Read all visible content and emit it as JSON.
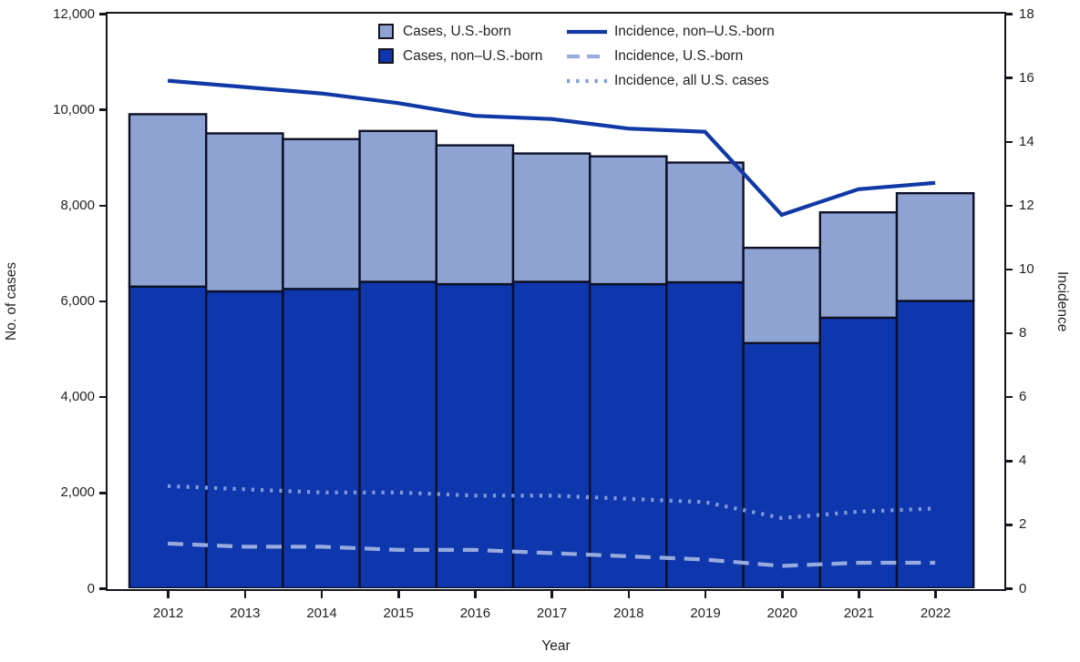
{
  "legend": {
    "bars": [
      {
        "label": "Cases, U.S.-born",
        "color": "#8FA3D3"
      },
      {
        "label": "Cases, non–U.S.-born",
        "color": "#0E36AD"
      }
    ],
    "lines": [
      {
        "label": "Incidence, non–U.S.-born",
        "style": "solid",
        "color": "#1039A6"
      },
      {
        "label": "Incidence, U.S.-born",
        "style": "dashed",
        "color": "#98ABDE"
      },
      {
        "label": "Incidence, all U.S. cases",
        "style": "dotted",
        "color": "#7E9BD9"
      }
    ]
  },
  "chart_data": {
    "type": "bar",
    "subtype": "stacked-bars-with-line-overlay",
    "categories": [
      "2012",
      "2013",
      "2014",
      "2015",
      "2016",
      "2017",
      "2018",
      "2019",
      "2020",
      "2021",
      "2022"
    ],
    "bar_series": [
      {
        "name": "Cases, non–U.S.-born",
        "color": "#0E36AD",
        "values": [
          6300,
          6200,
          6250,
          6400,
          6350,
          6400,
          6350,
          6390,
          5120,
          5650,
          6000
        ]
      },
      {
        "name": "Cases, U.S.-born",
        "color": "#8FA3D3",
        "values": [
          3600,
          3300,
          3130,
          3150,
          2900,
          2680,
          2670,
          2500,
          1990,
          2200,
          2250
        ]
      }
    ],
    "line_series": [
      {
        "name": "Incidence, non–U.S.-born",
        "style": "solid",
        "color": "#1039A6",
        "axis": "right",
        "values": [
          15.9,
          15.7,
          15.5,
          15.2,
          14.8,
          14.7,
          14.4,
          14.3,
          11.7,
          12.5,
          12.7
        ]
      },
      {
        "name": "Incidence, U.S.-born",
        "style": "dashed",
        "color": "#98ABDE",
        "axis": "right",
        "values": [
          1.4,
          1.3,
          1.3,
          1.2,
          1.2,
          1.1,
          1.0,
          0.9,
          0.7,
          0.8,
          0.8
        ]
      },
      {
        "name": "Incidence, all U.S. cases",
        "style": "dotted",
        "color": "#7E9BD9",
        "axis": "right",
        "values": [
          3.2,
          3.1,
          3.0,
          3.0,
          2.9,
          2.9,
          2.8,
          2.7,
          2.2,
          2.4,
          2.5
        ]
      }
    ],
    "left_axis": {
      "label": "No. of cases",
      "min": 0,
      "max": 12000,
      "tick_step": 2000,
      "ticks": [
        "0",
        "2,000",
        "4,000",
        "6,000",
        "8,000",
        "10,000",
        "12,000"
      ]
    },
    "right_axis": {
      "label": "Incidence",
      "min": 0,
      "max": 18,
      "tick_step": 2,
      "ticks": [
        "0",
        "2",
        "4",
        "6",
        "8",
        "10",
        "12",
        "14",
        "16",
        "18"
      ]
    },
    "x_axis": {
      "label": "Year"
    },
    "grid": false,
    "legend_position": "top-center",
    "bar_outline_color": "#0d1026"
  }
}
